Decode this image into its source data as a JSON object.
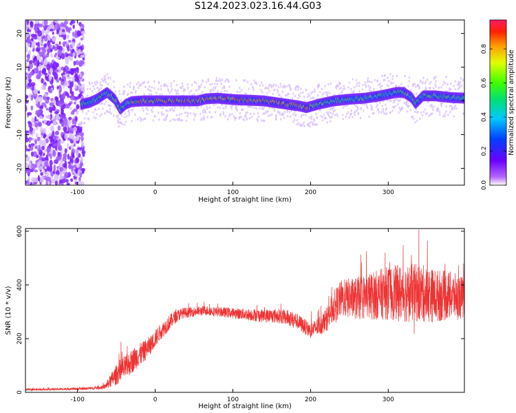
{
  "title": "S124.2023.023.16.44.G03",
  "chart_data": [
    {
      "type": "heatmap",
      "xlabel": "Height of straight line (km)",
      "ylabel": "Frequency (Hz)",
      "xlim": [
        -167,
        398
      ],
      "ylim": [
        -25,
        24
      ],
      "xticks": [
        -100,
        0,
        100,
        200,
        300
      ],
      "yticks": [
        -20,
        -10,
        0,
        10,
        20
      ],
      "colorbar": {
        "label": "Normalized spectral amplitude",
        "range": [
          0.0,
          0.97
        ],
        "ticks": [
          "0.0",
          "0.2",
          "0.4",
          "0.6",
          "0.8"
        ]
      },
      "ridge": {
        "x": [
          -95,
          -85,
          -75,
          -62,
          -52,
          -45,
          -38,
          -30,
          -15,
          0,
          20,
          40,
          55,
          65,
          80,
          100,
          120,
          140,
          155,
          170,
          185,
          195,
          210,
          230,
          250,
          270,
          290,
          310,
          320,
          330,
          335,
          345,
          360,
          380,
          398
        ],
        "y": [
          -1.0,
          -0.5,
          0.5,
          2.5,
          0.5,
          -2.5,
          -1.0,
          -0.2,
          0.0,
          0.0,
          0.0,
          0.0,
          0.0,
          0.6,
          0.8,
          0.4,
          0.2,
          0.0,
          -0.5,
          -1.0,
          -1.5,
          -2.0,
          -1.0,
          0.0,
          0.5,
          0.8,
          1.5,
          2.5,
          2.5,
          1.0,
          -0.8,
          1.5,
          1.5,
          1.0,
          0.8
        ]
      },
      "noise_region": [
        -167,
        -92
      ]
    },
    {
      "type": "line",
      "xlabel": "Height of straight line (km)",
      "ylabel": "SNR (10 * v/v)",
      "xlim": [
        -167,
        398
      ],
      "ylim": [
        0,
        610
      ],
      "xticks": [
        -100,
        0,
        100,
        200,
        300
      ],
      "yticks": [
        0,
        200,
        400,
        600
      ],
      "series": [
        {
          "color": "#ee3333",
          "x": [
            -167,
            -120,
            -80,
            -65,
            -55,
            -45,
            -35,
            -25,
            -15,
            -5,
            5,
            15,
            25,
            35,
            50,
            65,
            80,
            100,
            120,
            140,
            160,
            180,
            200,
            210,
            220,
            230,
            240,
            260,
            280,
            300,
            320,
            340,
            360,
            380,
            398
          ],
          "y": [
            10,
            12,
            15,
            20,
            50,
            80,
            100,
            130,
            150,
            180,
            220,
            250,
            280,
            295,
            300,
            305,
            300,
            295,
            290,
            285,
            285,
            270,
            230,
            245,
            270,
            320,
            350,
            350,
            360,
            370,
            370,
            370,
            360,
            360,
            350
          ],
          "spread": [
            4,
            4,
            5,
            8,
            30,
            45,
            45,
            45,
            40,
            35,
            30,
            30,
            25,
            20,
            18,
            18,
            18,
            20,
            22,
            25,
            28,
            30,
            28,
            35,
            45,
            60,
            70,
            80,
            90,
            100,
            110,
            110,
            100,
            90,
            80
          ]
        }
      ]
    }
  ]
}
